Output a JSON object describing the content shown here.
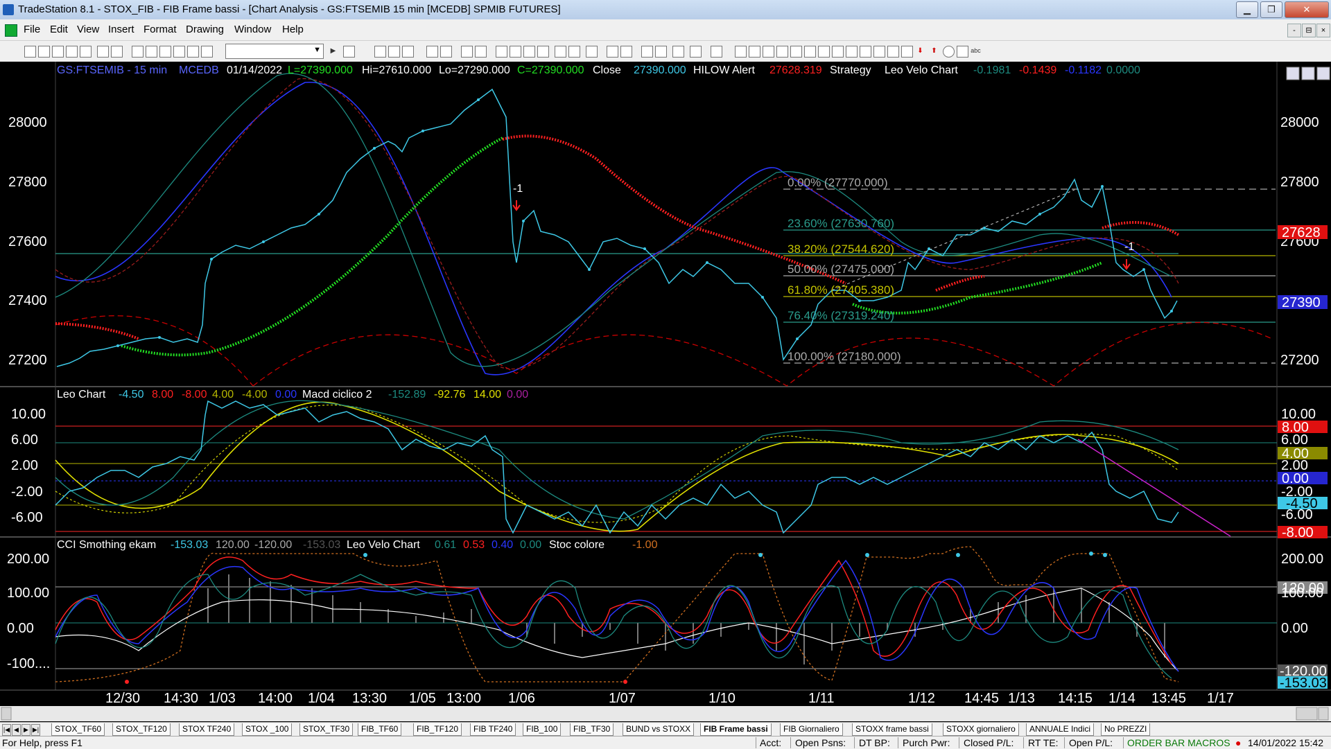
{
  "window": {
    "title": "TradeStation 8.1 - STOX_FIB - FIB Frame bassi - [Chart Analysis - GS:FTSEMIB  15 min  [MCEDB] SPMIB FUTURES]",
    "minimize": "▁",
    "restore": "❐",
    "close": "✕"
  },
  "menu": [
    "File",
    "Edit",
    "View",
    "Insert",
    "Format",
    "Drawing",
    "Window",
    "Help"
  ],
  "mdi_controls": [
    "-",
    "⊟",
    "×"
  ],
  "chart": {
    "header": {
      "symbol": "GS:FTSEMIB - 15 min",
      "source": "MCEDB",
      "date": "01/14/2022",
      "last": "L=27390.000",
      "hi": "Hi=27610.000",
      "lo": "Lo=27290.000",
      "close_val": "C=27390.000",
      "close_label": "Close",
      "close_num": "27390.000",
      "hilow": "HILOW Alert",
      "hilow_val": "27628.319",
      "strategy": "Strategy",
      "leo": "Leo Velo Chart",
      "leo1": "-0.1981",
      "leo2": "-0.1439",
      "leo3": "-0.1182",
      "leo4": "0.0000"
    },
    "price_ticks": [
      "28000",
      "27800",
      "27600",
      "27400",
      "27200"
    ],
    "price_markers": {
      "red": "27628",
      "blue": "27390"
    },
    "fib": {
      "f0": "0.00% (27770.000)",
      "f236": "23.60% (27630.760)",
      "f382": "38.20% (27544.620)",
      "f50": "50.00% (27475.000)",
      "f618": "61.80% (27405.380)",
      "f764": "76.40% (27319.240)",
      "f100": "100.00% (27180.000)"
    },
    "price_annotations": {
      "a1": "-1",
      "a2": "-1"
    },
    "panel2": {
      "title": "Leo Chart",
      "v1": "-4.50",
      "v2": "8.00",
      "v3": "-8.00",
      "v4": "4.00",
      "v5": "-4.00",
      "v6": "0.00",
      "macd": "Macd ciclico 2",
      "m1": "-152.89",
      "m2": "-92.76",
      "m3": "14.00",
      "m4": "0.00",
      "ticks": [
        "10.00",
        "6.00",
        "2.00",
        "-2.00",
        "-6.00"
      ],
      "markers": {
        "red8": "8.00",
        "olive4": "4.00",
        "blue0": "0.00",
        "cyan": "-4.50",
        "red_neg8": "-8.00",
        "t6": "6.00",
        "t2": "2.00",
        "tm2": "-2.00",
        "tm6": "-6.00"
      }
    },
    "panel3": {
      "title": "CCI Smothing ekam",
      "c1": "-153.03",
      "c2": "120.00",
      "c3": "-120.00",
      "c4": "-153.03",
      "leo": "Leo Velo Chart",
      "l1": "0.61",
      "l2": "0.53",
      "l3": "0.40",
      "l4": "0.00",
      "stoc": "Stoc colore",
      "s1": "-1.00",
      "ticks": [
        "200.00",
        "100.00",
        "0.00",
        "-100...."
      ],
      "markers": {
        "gray120": "120.00",
        "neg120": "-120.00",
        "cyan": "-153.03",
        "t100": "100.00",
        "t0": "0.00",
        "t200": "200.00"
      }
    },
    "time_ticks": [
      "12/30",
      "14:30",
      "1/03",
      "14:00",
      "1/04",
      "13:30",
      "1/05",
      "13:00",
      "1/06",
      "1/07",
      "1/10",
      "1/11",
      "1/12",
      "14:45",
      "1/13",
      "14:15",
      "1/14",
      "13:45",
      "1/17"
    ],
    "colors": {
      "background": "#000000",
      "price": "#3ec8e6",
      "red_ma": "#ff2020",
      "green_ma": "#22dd22",
      "fib_teal": "#2a9c8c",
      "fib_olive": "#c4c400"
    }
  },
  "tabs": [
    "STOX_TF60",
    "STOX_TF120",
    "STOX TF240",
    "STOX _100",
    "STOX_TF30",
    "FIB_TF60",
    "FIB_TF120",
    "FIB TF240",
    "FIB_100",
    "FIB_TF30",
    "BUND vs STOXX",
    "FIB Frame bassi",
    "FIB Giornaliero",
    "STOXX frame bassi",
    "STOXX giornaliero",
    "ANNUALE Indici",
    "No PREZZI"
  ],
  "active_tab": "FIB Frame bassi",
  "status": {
    "help": "For Help, press F1",
    "acct": "Acct:",
    "open_psns": "Open Psns:",
    "dt_bp": "DT BP:",
    "purch": "Purch Pwr:",
    "closed": "Closed P/L:",
    "rt": "RT TE:",
    "open_pl": "Open P/L:",
    "orderbar": "ORDER BAR  MACROS",
    "datetime": "14/01/2022 15:42"
  }
}
